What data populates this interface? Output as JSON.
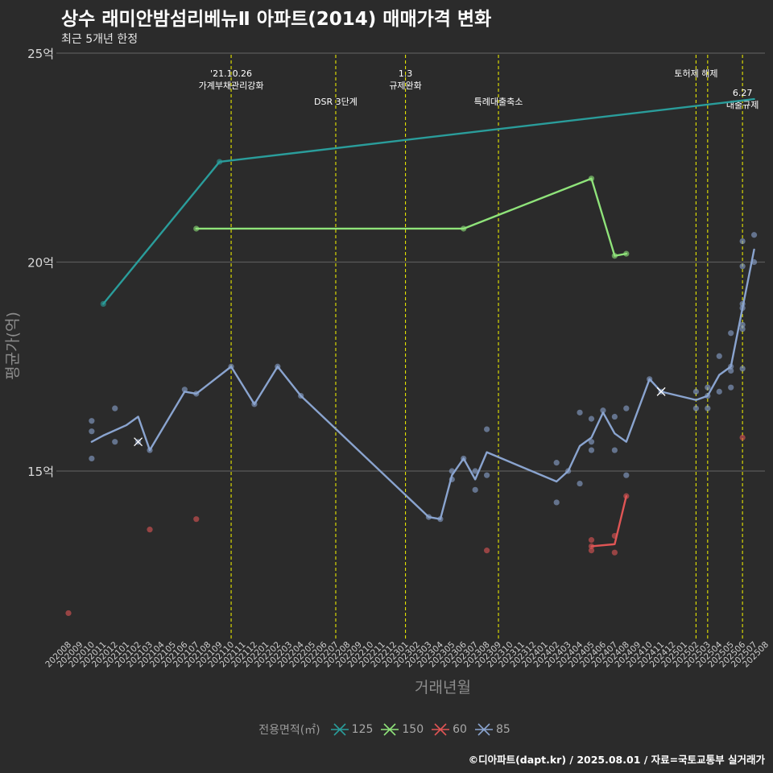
{
  "title": "상수 래미안밤섬리베뉴Ⅱ 아파트(2014) 매매가격 변화",
  "subtitle": "최근 5개년 한정",
  "caption": "©디아파트(dapt.kr) / 2025.08.01 / 자료=국토교통부 실거래가",
  "legend": {
    "title": "전용면적(㎡)",
    "items": [
      {
        "label": "125",
        "color": "#2a9d9b"
      },
      {
        "label": "150",
        "color": "#8fe37a"
      },
      {
        "label": "60",
        "color": "#e05555"
      },
      {
        "label": "85",
        "color": "#8aa4cf"
      }
    ]
  },
  "chart_data": {
    "type": "line",
    "xlabel": "거래년월",
    "ylabel": "평균가(억)",
    "ylim": [
      11.1,
      25
    ],
    "yticks": [
      15,
      20,
      25
    ],
    "ytick_labels": [
      "15억",
      "20억",
      "25억"
    ],
    "x_categories": [
      "202008",
      "202009",
      "202010",
      "202011",
      "202012",
      "202101",
      "202102",
      "202103",
      "202104",
      "202105",
      "202106",
      "202107",
      "202108",
      "202109",
      "202110",
      "202111",
      "202112",
      "202201",
      "202202",
      "202203",
      "202204",
      "202205",
      "202206",
      "202207",
      "202208",
      "202209",
      "202210",
      "202211",
      "202212",
      "202301",
      "202302",
      "202303",
      "202304",
      "202305",
      "202306",
      "202307",
      "202308",
      "202309",
      "202310",
      "202311",
      "202312",
      "202401",
      "202402",
      "202403",
      "202404",
      "202405",
      "202406",
      "202407",
      "202408",
      "202409",
      "202410",
      "202411",
      "202412",
      "202501",
      "202502",
      "202503",
      "202504",
      "202505",
      "202506",
      "202507",
      "202508"
    ],
    "grid": "horizontal major only",
    "legend_position": "bottom",
    "series": [
      {
        "name": "125",
        "color": "#2a9d9b",
        "line": [
          [
            "202011",
            19.0
          ],
          [
            "202109",
            22.4
          ],
          [
            "202507",
            23.9
          ]
        ],
        "points": [
          [
            "202011",
            19.0
          ],
          [
            "202109",
            22.4
          ]
        ],
        "marked": []
      },
      {
        "name": "150",
        "color": "#8fe37a",
        "line": [
          [
            "202107",
            20.8
          ],
          [
            "202306",
            20.8
          ],
          [
            "202405",
            22.0
          ],
          [
            "202407",
            20.15
          ],
          [
            "202408",
            20.2
          ]
        ],
        "points": [
          [
            "202107",
            20.8
          ],
          [
            "202306",
            20.8
          ],
          [
            "202405",
            22.0
          ],
          [
            "202407",
            20.15
          ],
          [
            "202408",
            20.2
          ]
        ],
        "marked": []
      },
      {
        "name": "60",
        "color": "#e05555",
        "line": [
          [
            "202405",
            13.2
          ],
          [
            "202407",
            13.25
          ],
          [
            "202408",
            14.4
          ]
        ],
        "points": [
          [
            "202008",
            11.6
          ],
          [
            "202103",
            13.6
          ],
          [
            "202107",
            13.85
          ],
          [
            "202308",
            13.1
          ],
          [
            "202405",
            13.35
          ],
          [
            "202405",
            13.2
          ],
          [
            "202405",
            13.1
          ],
          [
            "202407",
            13.45
          ],
          [
            "202407",
            13.05
          ],
          [
            "202408",
            14.4
          ],
          [
            "202506",
            15.8
          ]
        ],
        "marked": []
      },
      {
        "name": "85",
        "color": "#8aa4cf",
        "line": [
          [
            "202010",
            15.7
          ],
          [
            "202011",
            15.85
          ],
          [
            "202101",
            16.1
          ],
          [
            "202102",
            16.3
          ],
          [
            "202103",
            15.5
          ],
          [
            "202106",
            16.9
          ],
          [
            "202107",
            16.85
          ],
          [
            "202110",
            17.5
          ],
          [
            "202112",
            16.6
          ],
          [
            "202202",
            17.5
          ],
          [
            "202204",
            16.8
          ],
          [
            "202303",
            13.9
          ],
          [
            "202304",
            13.85
          ],
          [
            "202305",
            14.9
          ],
          [
            "202306",
            15.3
          ],
          [
            "202307",
            14.8
          ],
          [
            "202308",
            15.45
          ],
          [
            "202402",
            14.75
          ],
          [
            "202403",
            15.0
          ],
          [
            "202404",
            15.6
          ],
          [
            "202405",
            15.8
          ],
          [
            "202406",
            16.4
          ],
          [
            "202407",
            15.9
          ],
          [
            "202408",
            15.7
          ],
          [
            "202410",
            17.2
          ],
          [
            "202411",
            16.9
          ],
          [
            "202502",
            16.7
          ],
          [
            "202503",
            16.8
          ],
          [
            "202504",
            17.3
          ],
          [
            "202505",
            17.5
          ],
          [
            "202506",
            18.9
          ],
          [
            "202507",
            20.3
          ]
        ],
        "points": [
          [
            "202010",
            16.2
          ],
          [
            "202010",
            15.95
          ],
          [
            "202010",
            15.3
          ],
          [
            "202012",
            16.5
          ],
          [
            "202012",
            15.7
          ],
          [
            "202102",
            15.7
          ],
          [
            "202103",
            15.5
          ],
          [
            "202106",
            16.95
          ],
          [
            "202107",
            16.85
          ],
          [
            "202110",
            17.5
          ],
          [
            "202112",
            16.6
          ],
          [
            "202202",
            17.5
          ],
          [
            "202204",
            16.8
          ],
          [
            "202303",
            13.9
          ],
          [
            "202304",
            13.85
          ],
          [
            "202305",
            15.0
          ],
          [
            "202305",
            14.8
          ],
          [
            "202306",
            15.3
          ],
          [
            "202307",
            15.0
          ],
          [
            "202307",
            14.55
          ],
          [
            "202308",
            16.0
          ],
          [
            "202308",
            14.9
          ],
          [
            "202402",
            15.2
          ],
          [
            "202402",
            14.25
          ],
          [
            "202403",
            15.0
          ],
          [
            "202404",
            16.4
          ],
          [
            "202404",
            14.7
          ],
          [
            "202405",
            16.25
          ],
          [
            "202405",
            15.7
          ],
          [
            "202405",
            15.5
          ],
          [
            "202406",
            16.45
          ],
          [
            "202407",
            16.3
          ],
          [
            "202407",
            15.5
          ],
          [
            "202408",
            16.5
          ],
          [
            "202408",
            14.9
          ],
          [
            "202410",
            17.2
          ],
          [
            "202411",
            16.9
          ],
          [
            "202502",
            16.9
          ],
          [
            "202502",
            16.5
          ],
          [
            "202503",
            17.0
          ],
          [
            "202503",
            16.8
          ],
          [
            "202503",
            16.5
          ],
          [
            "202504",
            17.75
          ],
          [
            "202504",
            16.9
          ],
          [
            "202505",
            18.3
          ],
          [
            "202505",
            17.5
          ],
          [
            "202505",
            17.4
          ],
          [
            "202505",
            17.0
          ],
          [
            "202506",
            20.5
          ],
          [
            "202506",
            19.9
          ],
          [
            "202506",
            19.0
          ],
          [
            "202506",
            18.9
          ],
          [
            "202506",
            18.5
          ],
          [
            "202506",
            18.4
          ],
          [
            "202506",
            17.45
          ],
          [
            "202507",
            20.65
          ],
          [
            "202507",
            20.0
          ]
        ],
        "marked": [
          [
            "202102",
            15.7
          ],
          [
            "202411",
            16.9
          ]
        ]
      }
    ],
    "annotations": [
      {
        "x": "202110",
        "label_lines": [
          "'21.10.26",
          "가계부채관리강화"
        ],
        "tier": 1
      },
      {
        "x": "202207",
        "label_lines": [
          "DSR 3단계"
        ],
        "tier": 2
      },
      {
        "x": "202301",
        "label_lines": [
          "1.3",
          "규제완화"
        ],
        "tier": 1
      },
      {
        "x": "202309",
        "label_lines": [
          "특례대출축소"
        ],
        "tier": 2
      },
      {
        "x": "202502",
        "label_lines": [
          "토허제 해제"
        ],
        "tier": 1
      },
      {
        "x": "202503",
        "label_lines": [],
        "tier": 1
      },
      {
        "x": "202506",
        "label_lines": [
          "6.27",
          "대출규제"
        ],
        "tier": 3
      }
    ]
  }
}
